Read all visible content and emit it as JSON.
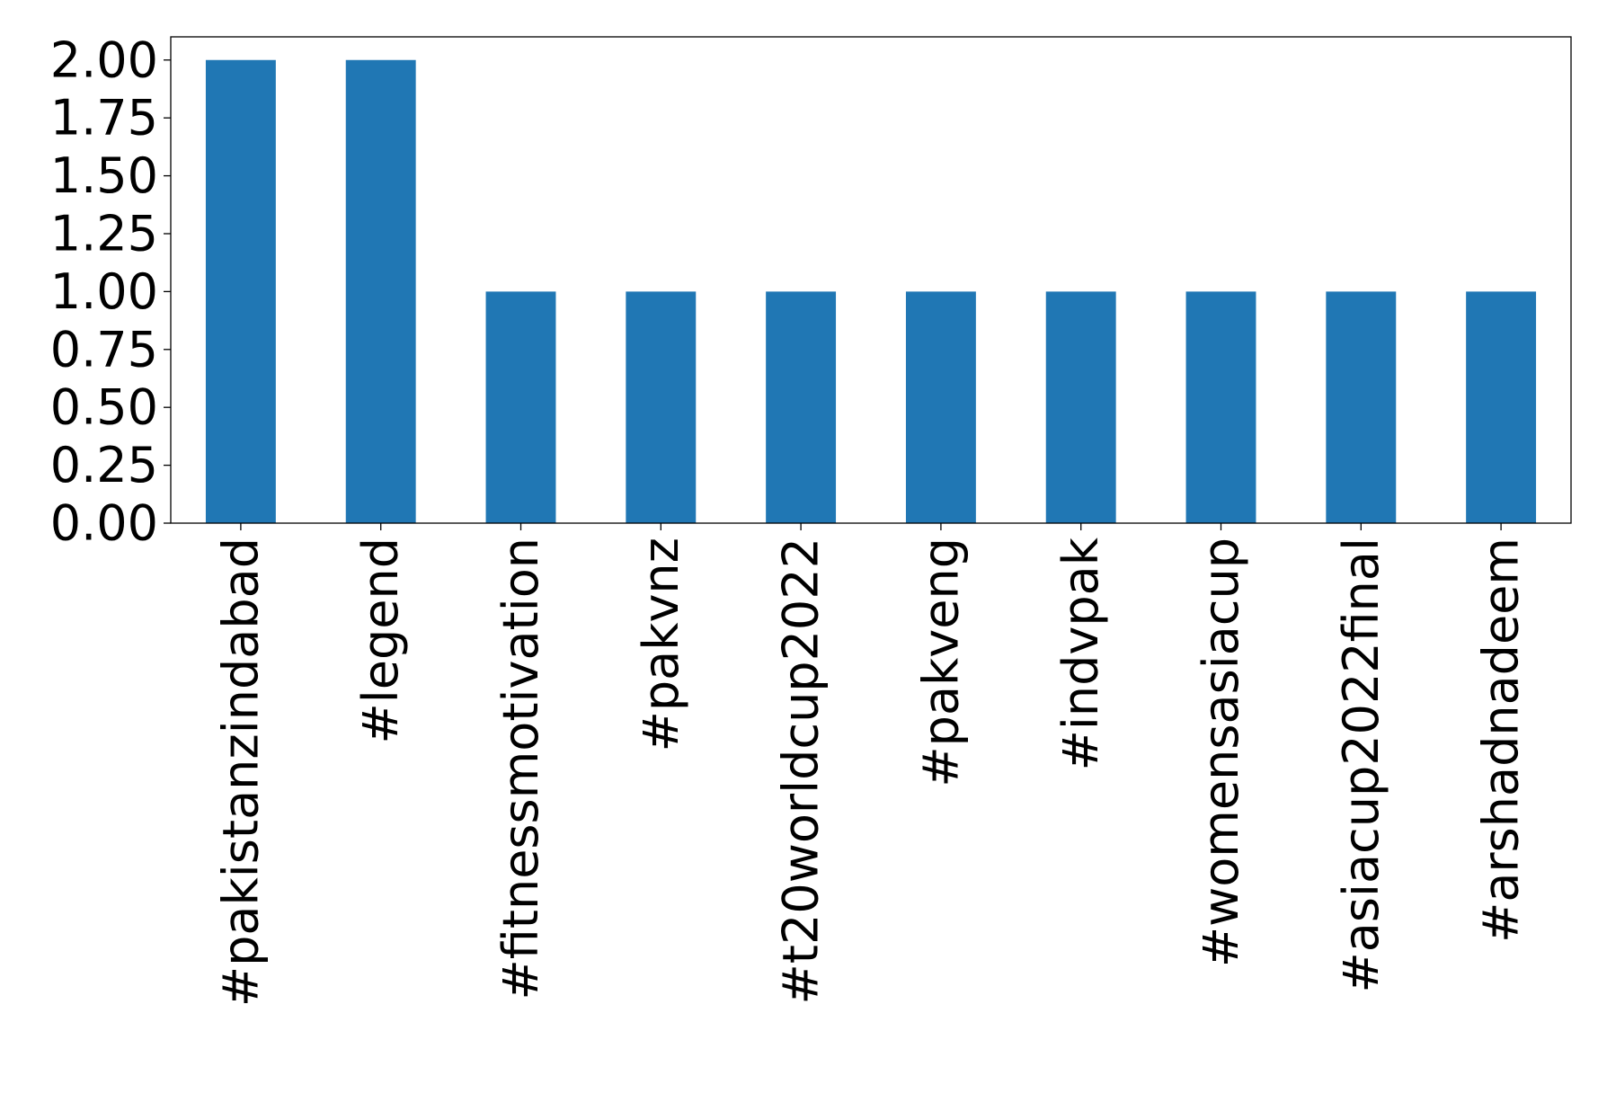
{
  "chart_data": {
    "type": "bar",
    "title": "",
    "xlabel": "",
    "ylabel": "",
    "categories": [
      "#pakistanzindabad",
      "#legend",
      "#fitnessmotivation",
      "#pakvnz",
      "#t20worldcup2022",
      "#pakveng",
      "#indvpak",
      "#womensasiacup",
      "#asiacup2022final",
      "#arshadnadeem"
    ],
    "values": [
      2,
      2,
      1,
      1,
      1,
      1,
      1,
      1,
      1,
      1
    ],
    "ylim": [
      0,
      2.1
    ],
    "yticks": [
      "0.00",
      "0.25",
      "0.50",
      "0.75",
      "1.00",
      "1.25",
      "1.50",
      "1.75",
      "2.00"
    ],
    "bar_color": "#2077b4",
    "grid": false,
    "legend": "none"
  }
}
